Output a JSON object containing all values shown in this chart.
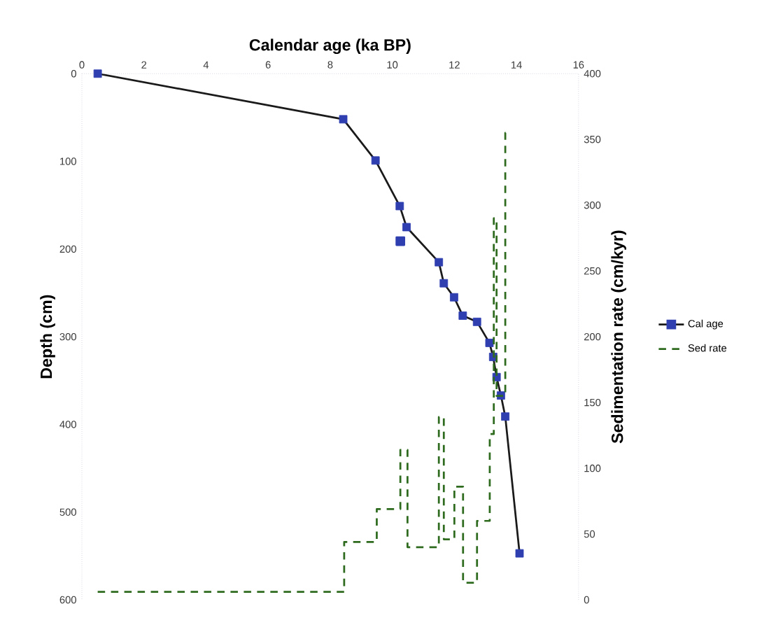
{
  "chart_data": {
    "type": "line",
    "xlabel": "Calendar age (ka BP)",
    "ylabel": "Depth (cm)",
    "y2label": "Sedimentation rate (cm/kyr)",
    "xlim": [
      0,
      16
    ],
    "xticks": [
      0,
      2,
      4,
      6,
      8,
      10,
      12,
      14,
      16
    ],
    "ylim": [
      600,
      0
    ],
    "yticks": [
      0,
      100,
      200,
      300,
      400,
      500,
      600
    ],
    "y2lim": [
      0,
      400
    ],
    "y2ticks": [
      0,
      50,
      100,
      150,
      200,
      250,
      300,
      350,
      400
    ],
    "legend": "right",
    "series": [
      {
        "name": "Cal age",
        "color": "#1a1a1a",
        "marker": "square",
        "line_style": "solid",
        "x": [
          0.51,
          8.42,
          9.46,
          10.24,
          10.46,
          11.5,
          11.66,
          11.99,
          12.27,
          12.73,
          13.13,
          13.25,
          13.36,
          13.5,
          13.64,
          14.1
        ],
        "values": [
          0,
          52,
          99,
          151,
          175,
          215,
          239,
          255,
          276,
          283,
          307,
          323,
          346,
          367,
          391,
          547
        ],
        "colors": [
          "#2f3fb0",
          "#2f3fb0",
          "#2f3fb0",
          "#2f3fb0",
          "#2f3fb0",
          "#2f3fb0",
          "#2f3fb0",
          "#2f3fb0",
          "#2f3fb0",
          "#2f3fb0",
          "#2f3fb0",
          "#2f3fb0",
          "#2f3fb0",
          "#2f3fb0",
          "#2f3fb0",
          "#2f3fb0"
        ]
      },
      {
        "type": "scatter",
        "color": "#2f3fb0",
        "marker": "square",
        "x": [
          10.26
        ],
        "values": [
          191
        ]
      },
      {
        "name": "Sed rate",
        "type": "line",
        "axis": "y2",
        "color": "#2e6b1e",
        "marker": "none",
        "line_style": "dashed",
        "x": [
          0.51,
          8.45,
          8.45,
          9.5,
          9.5,
          10.26,
          10.26,
          10.49,
          10.49,
          11.5,
          11.5,
          11.66,
          11.66,
          12.0,
          12.0,
          12.28,
          12.28,
          12.73,
          12.73,
          13.14,
          13.14,
          13.27,
          13.27,
          13.36,
          13.36,
          13.64,
          13.64,
          13.75
        ],
        "values": [
          6,
          6,
          44,
          44,
          69,
          69,
          114,
          114,
          40,
          40,
          139,
          139,
          46,
          46,
          86,
          86,
          13,
          13,
          60,
          60,
          126,
          126,
          290,
          290,
          155,
          155,
          355,
          355
        ]
      }
    ]
  }
}
